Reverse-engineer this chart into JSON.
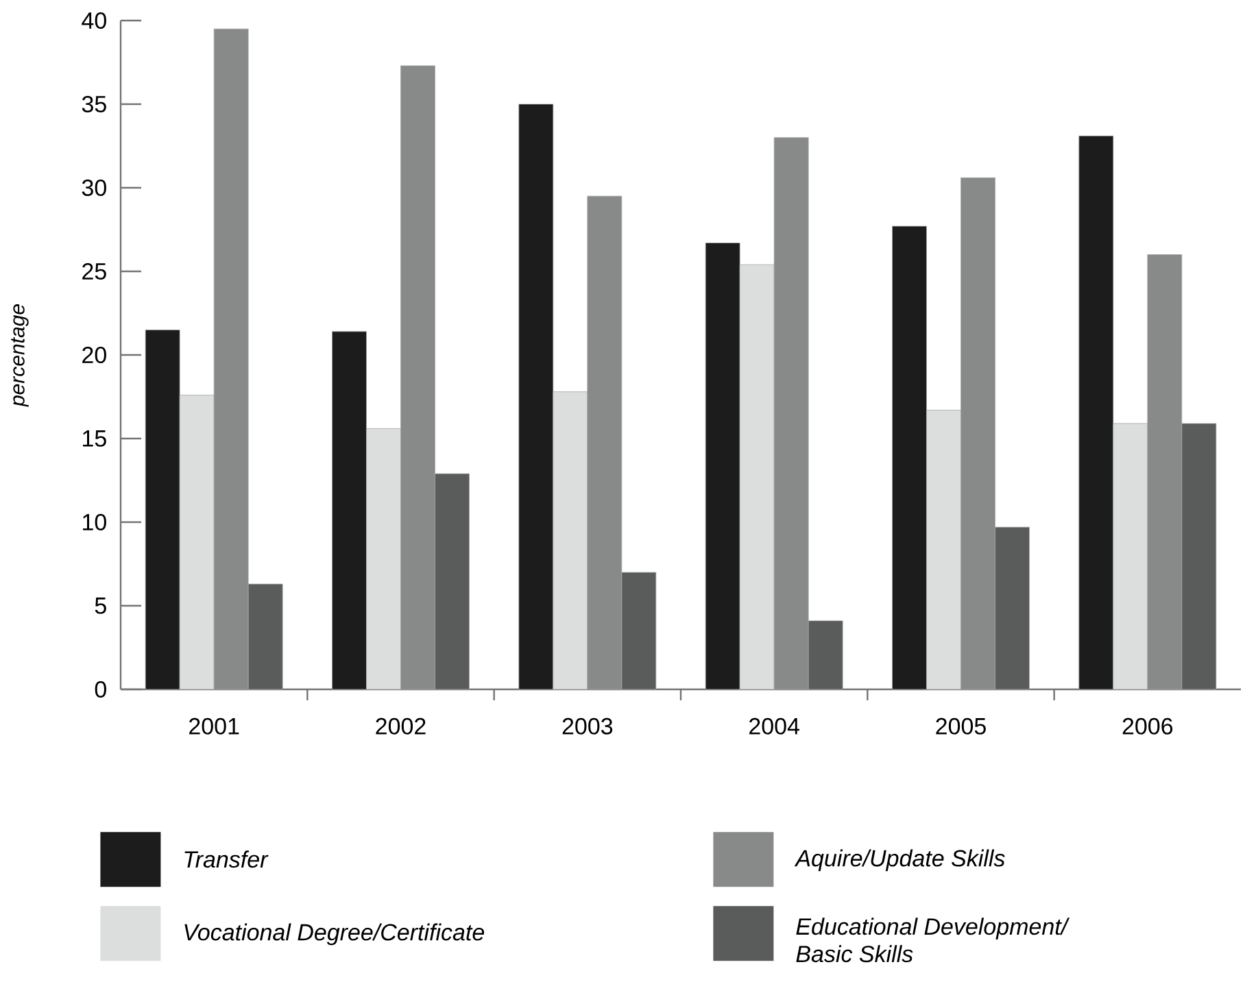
{
  "chart_data": {
    "type": "bar",
    "ylabel": "percentage",
    "categories": [
      "2001",
      "2002",
      "2003",
      "2004",
      "2005",
      "2006"
    ],
    "series": [
      {
        "name": "Transfer",
        "color": "#1c1c1c",
        "values": [
          21.5,
          21.4,
          35.0,
          26.7,
          27.7,
          33.1
        ]
      },
      {
        "name": "Vocational Degree/Certificate",
        "color": "#dcdddd",
        "values": [
          17.6,
          15.6,
          17.8,
          25.4,
          16.7,
          15.9
        ]
      },
      {
        "name": "Aquire/Update Skills",
        "color": "#888a8a",
        "values": [
          39.5,
          37.3,
          29.5,
          33.0,
          30.6,
          26.0
        ]
      },
      {
        "name": "Educational Development/ Basic Skills",
        "color": "#5a5b5b",
        "values": [
          6.3,
          12.9,
          7.0,
          4.1,
          9.7,
          15.9
        ]
      }
    ],
    "ylim": [
      0,
      40
    ],
    "yticks": [
      0,
      5,
      10,
      15,
      20,
      25,
      30,
      35,
      40
    ],
    "grid": false,
    "legend": "bottom"
  }
}
